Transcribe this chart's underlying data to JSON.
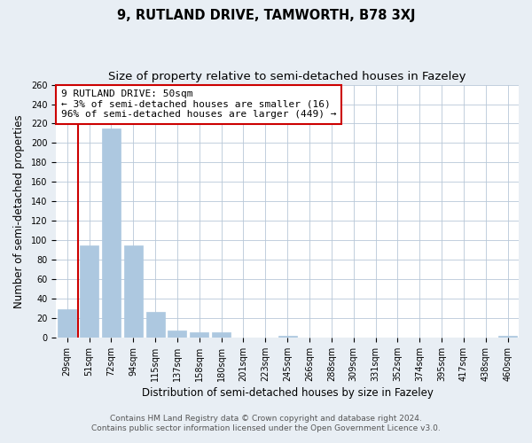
{
  "title": "9, RUTLAND DRIVE, TAMWORTH, B78 3XJ",
  "subtitle": "Size of property relative to semi-detached houses in Fazeley",
  "xlabel": "Distribution of semi-detached houses by size in Fazeley",
  "ylabel": "Number of semi-detached properties",
  "footer_line1": "Contains HM Land Registry data © Crown copyright and database right 2024.",
  "footer_line2": "Contains public sector information licensed under the Open Government Licence v3.0.",
  "bar_labels": [
    "29sqm",
    "51sqm",
    "72sqm",
    "94sqm",
    "115sqm",
    "137sqm",
    "158sqm",
    "180sqm",
    "201sqm",
    "223sqm",
    "245sqm",
    "266sqm",
    "288sqm",
    "309sqm",
    "331sqm",
    "352sqm",
    "374sqm",
    "395sqm",
    "417sqm",
    "438sqm",
    "460sqm"
  ],
  "bar_values": [
    29,
    95,
    215,
    95,
    26,
    7,
    5,
    5,
    0,
    0,
    2,
    0,
    0,
    0,
    0,
    0,
    0,
    0,
    0,
    0,
    2
  ],
  "bar_color": "#adc8e0",
  "bar_edge_color": "#adc8e0",
  "annotation_text_line1": "9 RUTLAND DRIVE: 50sqm",
  "annotation_text_line2": "← 3% of semi-detached houses are smaller (16)",
  "annotation_text_line3": "96% of semi-detached houses are larger (449) →",
  "annotation_box_facecolor": "white",
  "annotation_box_edgecolor": "#cc0000",
  "property_line_color": "#cc0000",
  "property_line_x": 0.5,
  "ylim": [
    0,
    260
  ],
  "yticks": [
    0,
    20,
    40,
    60,
    80,
    100,
    120,
    140,
    160,
    180,
    200,
    220,
    240,
    260
  ],
  "background_color": "#e8eef4",
  "plot_bg_color": "white",
  "grid_color": "#b8c8d8",
  "title_fontsize": 10.5,
  "subtitle_fontsize": 9.5,
  "axis_label_fontsize": 8.5,
  "tick_fontsize": 7,
  "annotation_fontsize": 8,
  "footer_fontsize": 6.5
}
